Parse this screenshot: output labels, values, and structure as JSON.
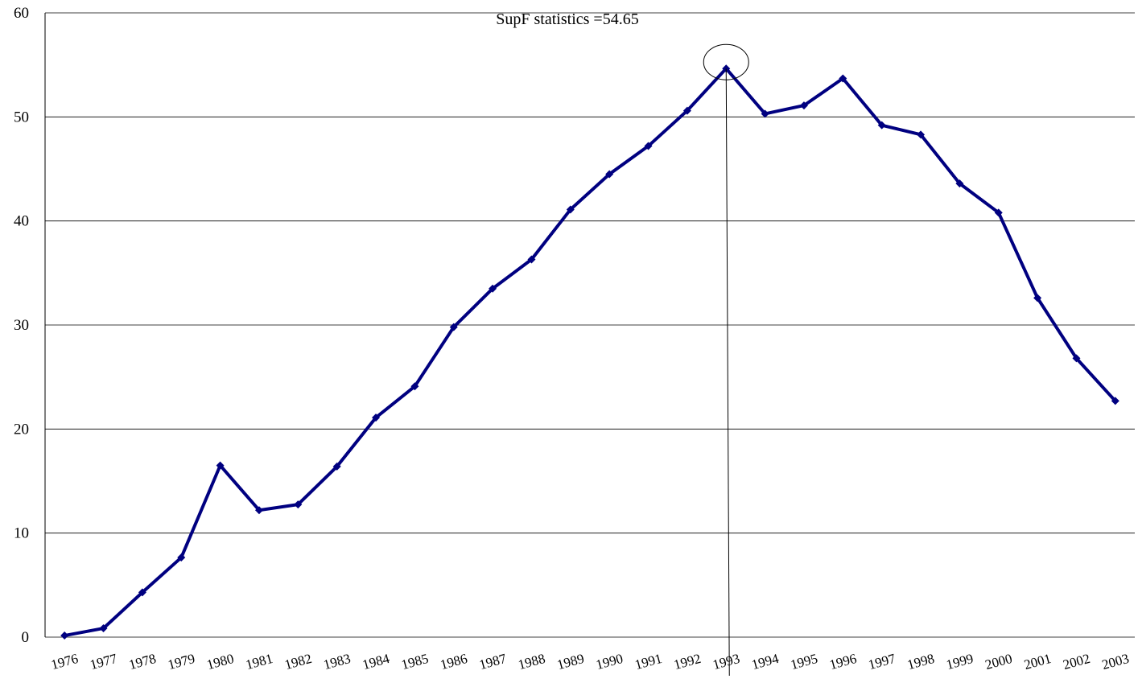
{
  "chart_data": {
    "type": "line",
    "annotation": "SupF statistics =54.65",
    "categories": [
      "1976",
      "1977",
      "1978",
      "1979",
      "1980",
      "1981",
      "1982",
      "1983",
      "1984",
      "1985",
      "1986",
      "1987",
      "1988",
      "1989",
      "1990",
      "1991",
      "1992",
      "1993",
      "1994",
      "1995",
      "1996",
      "1997",
      "1998",
      "1999",
      "2000",
      "2001",
      "2002",
      "2003"
    ],
    "series": [
      {
        "color": "#000080",
        "values": [
          0.15,
          0.85,
          4.3,
          7.65,
          16.5,
          12.2,
          12.75,
          16.4,
          21.1,
          24.1,
          29.8,
          33.5,
          36.3,
          41.1,
          44.5,
          47.2,
          50.6,
          54.65,
          50.3,
          51.1,
          53.7,
          49.2,
          48.3,
          43.6,
          40.8,
          32.6,
          26.8,
          22.7
        ]
      }
    ],
    "ylim": [
      0,
      60
    ],
    "yticks": [
      0,
      10,
      20,
      30,
      40,
      50,
      60
    ],
    "grid": true
  }
}
